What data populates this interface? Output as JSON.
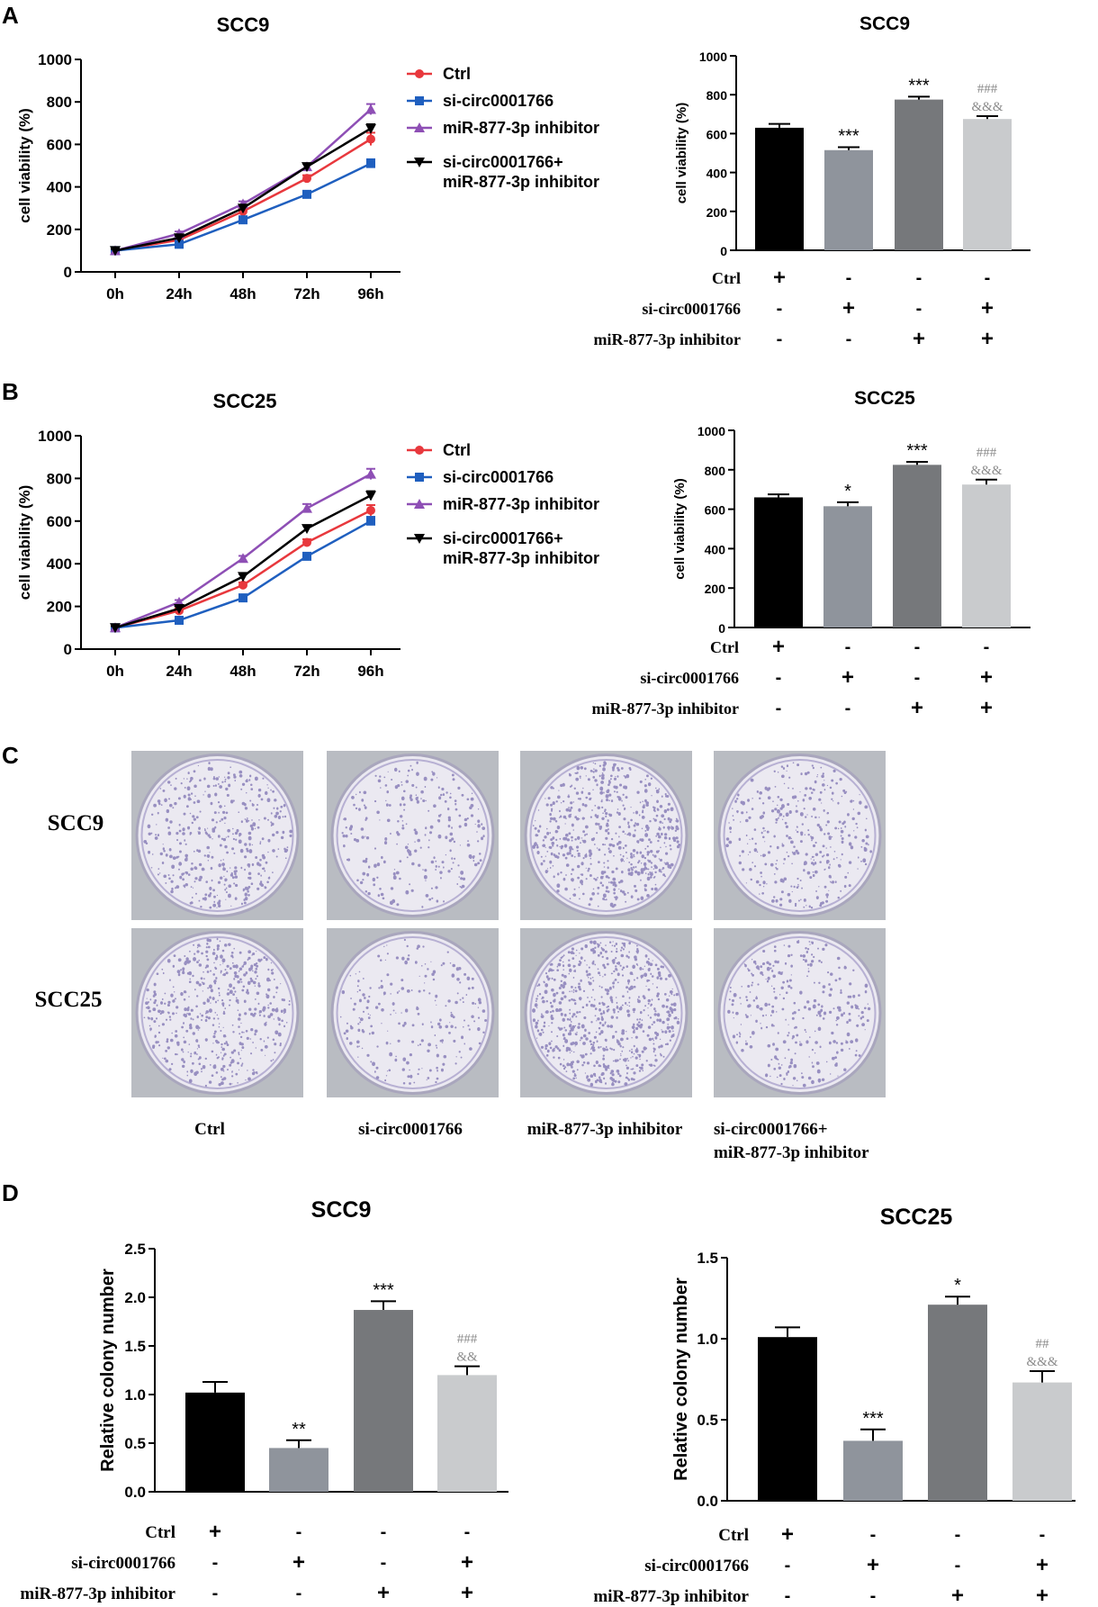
{
  "panel_letters": [
    "A",
    "B",
    "C",
    "D"
  ],
  "legend": {
    "items": [
      "Ctrl",
      "si-circ0001766",
      "miR-877-3p inhibitor",
      "si-circ0001766+",
      "miR-877-3p inhibitor"
    ]
  },
  "matrix": {
    "row_labels": [
      "Ctrl",
      "si-circ0001766",
      "miR-877-3p inhibitor"
    ],
    "plus": "+",
    "minus": "-",
    "rows": [
      [
        "+",
        "-",
        "-",
        "-"
      ],
      [
        "-",
        "+",
        "-",
        "+"
      ],
      [
        "-",
        "-",
        "+",
        "+"
      ]
    ]
  },
  "colony_plates": {
    "row_labels": [
      "SCC9",
      "SCC25"
    ],
    "column_labels": [
      "Ctrl",
      "si-circ0001766",
      "miR-877-3p inhibitor",
      "si-circ0001766+",
      "miR-877-3p inhibitor"
    ],
    "dish_color": "#8a7fb8"
  },
  "colors": {
    "ctrl_line": "#e8383d",
    "si_line": "#1f5fbf",
    "mir_line": "#8e4fb5",
    "combo_line": "#000000",
    "bar_ctrl": "#000000",
    "bar_si": "#8f949c",
    "bar_mir": "#76787b",
    "bar_combo": "#c9cbcd",
    "annot_gray": "#8c8c8c"
  },
  "chart_data": [
    {
      "id": "A-line",
      "type": "line",
      "title": "SCC9",
      "xlabel": "",
      "ylabel": "cell viability (%)",
      "categories": [
        "0h",
        "24h",
        "48h",
        "72h",
        "96h"
      ],
      "ylim": [
        0,
        1000
      ],
      "yticks": [
        0,
        200,
        400,
        600,
        800,
        1000
      ],
      "series": [
        {
          "name": "Ctrl",
          "values": [
            100,
            150,
            285,
            440,
            625
          ],
          "errors": [
            8,
            10,
            15,
            15,
            30
          ]
        },
        {
          "name": "si-circ0001766",
          "values": [
            100,
            130,
            245,
            365,
            510
          ],
          "errors": [
            8,
            10,
            12,
            15,
            20
          ]
        },
        {
          "name": "miR-877-3p inhibitor",
          "values": [
            100,
            180,
            320,
            495,
            765
          ],
          "errors": [
            8,
            10,
            12,
            15,
            25
          ]
        },
        {
          "name": "si-circ0001766+miR-877-3p inhibitor",
          "values": [
            100,
            160,
            300,
            495,
            675
          ],
          "errors": [
            8,
            10,
            12,
            15,
            20
          ]
        }
      ]
    },
    {
      "id": "A-bar",
      "type": "bar",
      "title": "SCC9",
      "xlabel": "",
      "ylabel": "cell viability (%)",
      "categories": [
        "Ctrl",
        "si-circ0001766",
        "miR-877-3p inhibitor",
        "si-circ0001766+miR-877-3p inhibitor"
      ],
      "values": [
        630,
        515,
        775,
        675
      ],
      "errors": [
        20,
        15,
        15,
        15
      ],
      "ylim": [
        0,
        1000
      ],
      "yticks": [
        0,
        200,
        400,
        600,
        800,
        1000
      ],
      "annotations": [
        [],
        [
          "***"
        ],
        [
          "***"
        ],
        [
          "###",
          "&&&"
        ]
      ]
    },
    {
      "id": "B-line",
      "type": "line",
      "title": "SCC25",
      "xlabel": "",
      "ylabel": "cell viability (%)",
      "categories": [
        "0h",
        "24h",
        "48h",
        "72h",
        "96h"
      ],
      "ylim": [
        0,
        1000
      ],
      "yticks": [
        0,
        200,
        400,
        600,
        800,
        1000
      ],
      "series": [
        {
          "name": "Ctrl",
          "values": [
            100,
            180,
            300,
            500,
            650
          ],
          "errors": [
            8,
            10,
            12,
            15,
            25
          ]
        },
        {
          "name": "si-circ0001766",
          "values": [
            100,
            135,
            240,
            435,
            600
          ],
          "errors": [
            8,
            10,
            12,
            15,
            20
          ]
        },
        {
          "name": "miR-877-3p inhibitor",
          "values": [
            100,
            220,
            425,
            660,
            820
          ],
          "errors": [
            8,
            10,
            12,
            20,
            25
          ]
        },
        {
          "name": "si-circ0001766+miR-877-3p inhibitor",
          "values": [
            100,
            190,
            340,
            565,
            720
          ],
          "errors": [
            8,
            10,
            12,
            15,
            20
          ]
        }
      ]
    },
    {
      "id": "B-bar",
      "type": "bar",
      "title": "SCC25",
      "xlabel": "",
      "ylabel": "cell viability (%)",
      "categories": [
        "Ctrl",
        "si-circ0001766",
        "miR-877-3p inhibitor",
        "si-circ0001766+miR-877-3p inhibitor"
      ],
      "values": [
        660,
        615,
        825,
        725
      ],
      "errors": [
        15,
        20,
        15,
        25
      ],
      "ylim": [
        0,
        1000
      ],
      "yticks": [
        0,
        200,
        400,
        600,
        800,
        1000
      ],
      "annotations": [
        [],
        [
          "*"
        ],
        [
          "***"
        ],
        [
          "###",
          "&&&"
        ]
      ]
    },
    {
      "id": "D-left",
      "type": "bar",
      "title": "SCC9",
      "xlabel": "",
      "ylabel": "Relative colony number",
      "categories": [
        "Ctrl",
        "si-circ0001766",
        "miR-877-3p inhibitor",
        "si-circ0001766+miR-877-3p inhibitor"
      ],
      "values": [
        1.02,
        0.45,
        1.87,
        1.2
      ],
      "errors": [
        0.11,
        0.08,
        0.09,
        0.09
      ],
      "ylim": [
        0,
        2.5
      ],
      "yticks": [
        "0.0",
        "0.5",
        "1.0",
        "1.5",
        "2.0",
        "2.5"
      ],
      "annotations": [
        [],
        [
          "**"
        ],
        [
          "***"
        ],
        [
          "###",
          "&&"
        ]
      ]
    },
    {
      "id": "D-right",
      "type": "bar",
      "title": "SCC25",
      "xlabel": "",
      "ylabel": "Relative colony number",
      "categories": [
        "Ctrl",
        "si-circ0001766",
        "miR-877-3p inhibitor",
        "si-circ0001766+miR-877-3p inhibitor"
      ],
      "values": [
        1.01,
        0.37,
        1.21,
        0.73
      ],
      "errors": [
        0.06,
        0.07,
        0.05,
        0.07
      ],
      "ylim": [
        0,
        1.5
      ],
      "yticks": [
        "0.0",
        "0.5",
        "1.0",
        "1.5"
      ],
      "annotations": [
        [],
        [
          "***"
        ],
        [
          "*"
        ],
        [
          "##",
          "&&&"
        ]
      ]
    }
  ]
}
